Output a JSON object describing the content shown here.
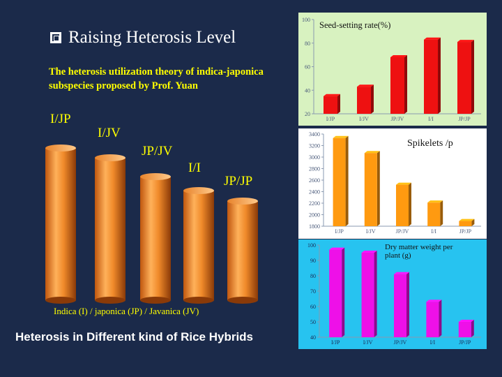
{
  "title": "Raising Heterosis Level",
  "subtitle": "The heterosis utilization theory of indica-japonica subspecies proposed by Prof. Yuan",
  "hybrids": [
    "I/JP",
    "I/JV",
    "JP/JV",
    "I/I",
    "JP/JP"
  ],
  "legend": "Indica (I) / japonica (JP) / Javanica (JV)",
  "footer": "Heterosis in Different kind of Rice Hybrids",
  "colors": {
    "background": "#1b2a4a",
    "yellow": "#ffff00",
    "cylinder": "#f08a2a",
    "red": "#ee1111",
    "orange": "#ff9a10",
    "magenta": "#ee10e8"
  },
  "chart_data": [
    {
      "type": "bar",
      "title": "Seed-setting rate(%)",
      "categories": [
        "I/JP",
        "I/JV",
        "JP/JV",
        "I/I",
        "JP/JP"
      ],
      "values": [
        35,
        43,
        68,
        83,
        81
      ],
      "ylim": [
        20,
        100
      ],
      "yticks": [
        20,
        40,
        60,
        80,
        100
      ],
      "color": "#ee1111",
      "grid": false
    },
    {
      "type": "bar",
      "title": "Spikelets /p",
      "categories": [
        "I/JP",
        "I/JV",
        "JP/JV",
        "I/I",
        "JP/JP"
      ],
      "values": [
        3330,
        3070,
        2520,
        2210,
        1890
      ],
      "ylim": [
        1800,
        3400
      ],
      "yticks": [
        1800,
        2000,
        2200,
        2400,
        2600,
        2800,
        3000,
        3200,
        3400
      ],
      "color": "#ff9a10",
      "grid": false
    },
    {
      "type": "bar",
      "title": "Dry matter weight per plant (g)",
      "categories": [
        "I/JP",
        "I/JV",
        "JP/JV",
        "I/I",
        "JP/JP"
      ],
      "values": [
        97,
        95,
        81,
        63,
        50
      ],
      "ylim": [
        40,
        100
      ],
      "yticks": [
        40,
        50,
        60,
        70,
        80,
        90,
        100
      ],
      "color": "#ee10e8",
      "grid": false
    }
  ]
}
